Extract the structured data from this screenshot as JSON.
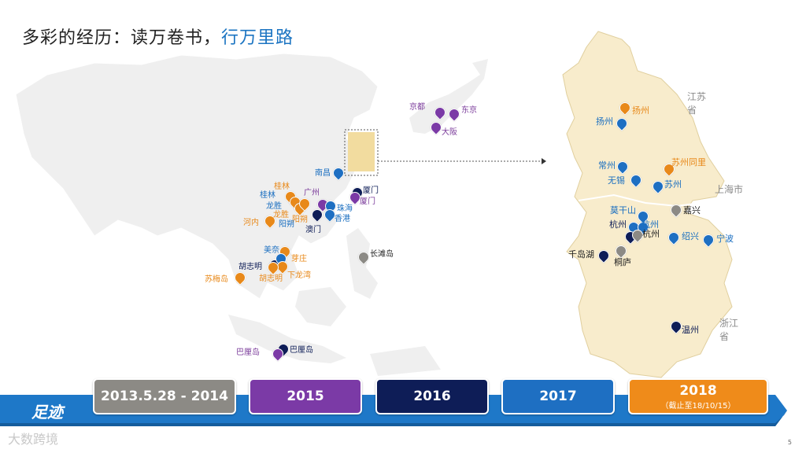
{
  "title": {
    "part1": "多彩的经历：读万卷书，",
    "part2": "行万里路"
  },
  "colors": {
    "blue": "#1b74c2",
    "orange": "#e8891a",
    "purple": "#7a3a9a",
    "navy": "#0e1d57",
    "gray": "#8c8a85"
  },
  "asia_labels": {
    "kyoto": "京都",
    "tokyo": "东京",
    "osaka": "大阪",
    "nanchang": "南昌",
    "xiamen1": "厦门",
    "xiamen2": "厦门",
    "guilin1": "桂林",
    "guilin2": "桂林",
    "guangzhou": "广州",
    "zhuhai": "珠海",
    "hongkong": "香港",
    "macau": "澳门",
    "longsheng1": "龙胜",
    "longsheng2": "龙胜",
    "yangshuo1": "阳朔",
    "yangshuo2": "阳朔",
    "hanoi": "河内",
    "changtan": "长滩岛",
    "meinai": "美奈",
    "yazhuang": "芽庄",
    "hcm1": "胡志明",
    "hcm2": "胡志明",
    "xialongwan": "下龙湾",
    "sumei": "苏梅岛",
    "bali1": "巴厘岛",
    "bali2": "巴厘岛"
  },
  "region_labels": {
    "jiangsu": "江苏省",
    "shanghai": "上海市",
    "zhejiang": "浙江省",
    "yangzhou1": "扬州",
    "yangzhou2": "扬州",
    "changzhou": "常州",
    "wuxi": "无锡",
    "suzhou_tongli": "苏州同里",
    "suzhou": "苏州",
    "jiaxing": "嘉兴",
    "moganshan": "莫干山",
    "hangzhou1": "杭州",
    "hangzhou2": "杭州",
    "hangzhou3": "杭州",
    "shaoxing": "绍兴",
    "ningbo": "宁波",
    "qiandaohu": "千岛湖",
    "tonglu": "桐庐",
    "wenzhou": "温州"
  },
  "timeline": {
    "label": "足迹",
    "years": [
      {
        "label": "2013.5.28 - 2014",
        "note": "",
        "color": "#8c8a85"
      },
      {
        "label": "2015",
        "note": "",
        "color": "#7b3aa6"
      },
      {
        "label": "2016",
        "note": "",
        "color": "#0e1d57"
      },
      {
        "label": "2017",
        "note": "",
        "color": "#1e6fc2"
      },
      {
        "label": "2018",
        "note": "（截止至18/10/15）",
        "color": "#ef8b1a"
      }
    ]
  },
  "watermark": "大数跨境",
  "page_number": "5"
}
